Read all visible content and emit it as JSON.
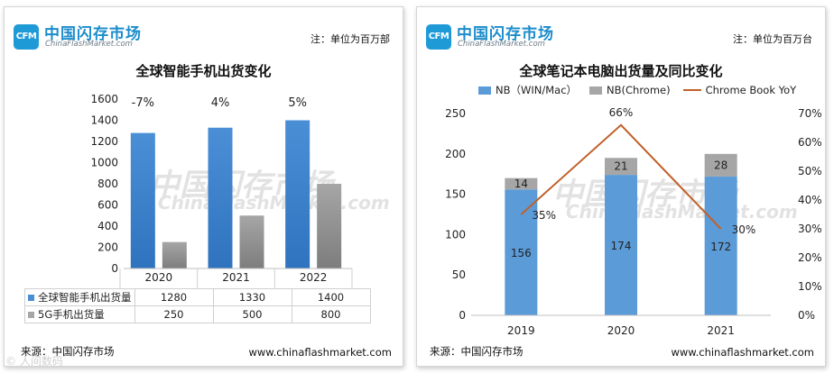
{
  "brand": {
    "badge": "CFM",
    "name_cn": "中国闪存市场",
    "name_en": "ChinaFlashMarket.com"
  },
  "colors": {
    "blue_bar": "#4a8fd6",
    "blue_bar_dark": "#2f73bf",
    "gray_bar": "#a6a6a6",
    "gray_bar_dark": "#7d7d7d",
    "line": "#c0612b",
    "brand_blue": "#1b8ccb"
  },
  "left_panel": {
    "unit_note": "注：单位为百万部",
    "title": "全球智能手机出货变化",
    "watermark_cn": "中国闪存市场",
    "watermark_en": "ChinaFlashMarket.com",
    "source": "来源：中国闪存市场",
    "website": "www.chinaflashmarket.com"
  },
  "right_panel": {
    "unit_note": "注：单位为百万台",
    "title": "全球笔记本电脑出货量及同比变化",
    "watermark_cn": "中国闪存市场",
    "watermark_en": "ChinaFlashMarket.com",
    "source": "来源：中国闪存市场",
    "website": "www.chinaflashmarket.com"
  },
  "corner_mark": "© 人间数码",
  "chart_data": [
    {
      "type": "bar",
      "title": "全球智能手机出货变化",
      "categories": [
        "2020",
        "2021",
        "2022"
      ],
      "ylim": [
        0,
        1600
      ],
      "yticks": [
        0,
        200,
        400,
        600,
        800,
        1000,
        1200,
        1400,
        1600
      ],
      "grid": false,
      "annotations": [
        "-7%",
        "4%",
        "5%"
      ],
      "series": [
        {
          "name": "全球智能手机出货量",
          "values": [
            1280,
            1330,
            1400
          ],
          "color": "#4a8fd6"
        },
        {
          "name": "5G手机出货量",
          "values": [
            250,
            500,
            800
          ],
          "color": "#a6a6a6"
        }
      ],
      "data_table": true
    },
    {
      "type": "bar",
      "title": "全球笔记本电脑出货量及同比变化",
      "categories": [
        "2019",
        "2020",
        "2021"
      ],
      "stacked": true,
      "ylim": [
        0,
        250
      ],
      "yticks": [
        0,
        50,
        100,
        150,
        200,
        250
      ],
      "y2lim": [
        0,
        70
      ],
      "y2ticks": [
        "0%",
        "10%",
        "20%",
        "30%",
        "40%",
        "50%",
        "60%",
        "70%"
      ],
      "grid": false,
      "legend_position": "top",
      "series": [
        {
          "name": "NB（WIN/Mac）",
          "type": "bar",
          "values": [
            156,
            174,
            172
          ],
          "labels": [
            "156",
            "174",
            "172"
          ],
          "color": "#5b9bd8"
        },
        {
          "name": "NB(Chrome)",
          "type": "bar",
          "values": [
            14,
            21,
            28
          ],
          "labels": [
            "14",
            "21",
            "28"
          ],
          "color": "#a6a6a6"
        },
        {
          "name": "Chrome Book YoY",
          "type": "line",
          "axis": "right",
          "values": [
            35,
            66,
            30
          ],
          "labels": [
            "35%",
            "66%",
            "30%"
          ],
          "color": "#c0612b"
        }
      ]
    }
  ]
}
